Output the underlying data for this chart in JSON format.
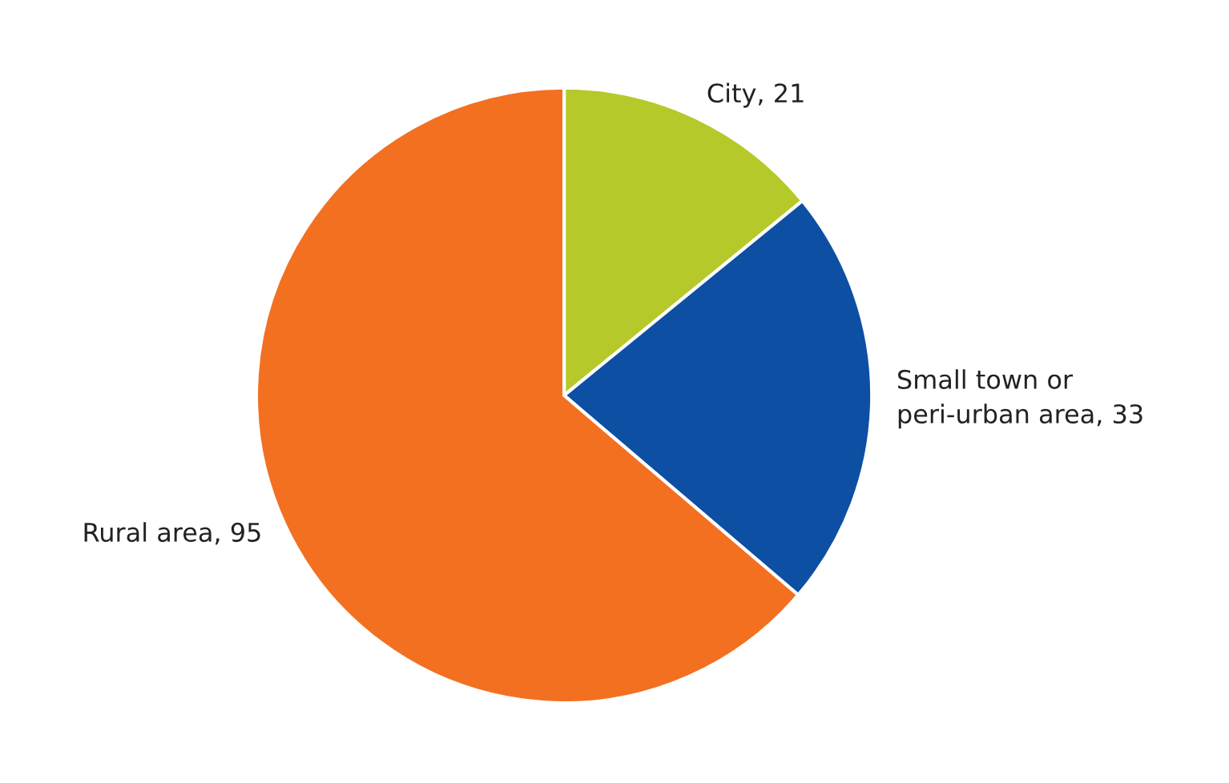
{
  "chart_data": {
    "type": "pie",
    "categories": [
      "City, 21",
      "Small town or\nperi-urban area, 33",
      "Rural area, 95"
    ],
    "values": [
      21,
      33,
      95
    ],
    "colors": [
      "#b5c92a",
      "#0d4fa3",
      "#f37021"
    ]
  }
}
